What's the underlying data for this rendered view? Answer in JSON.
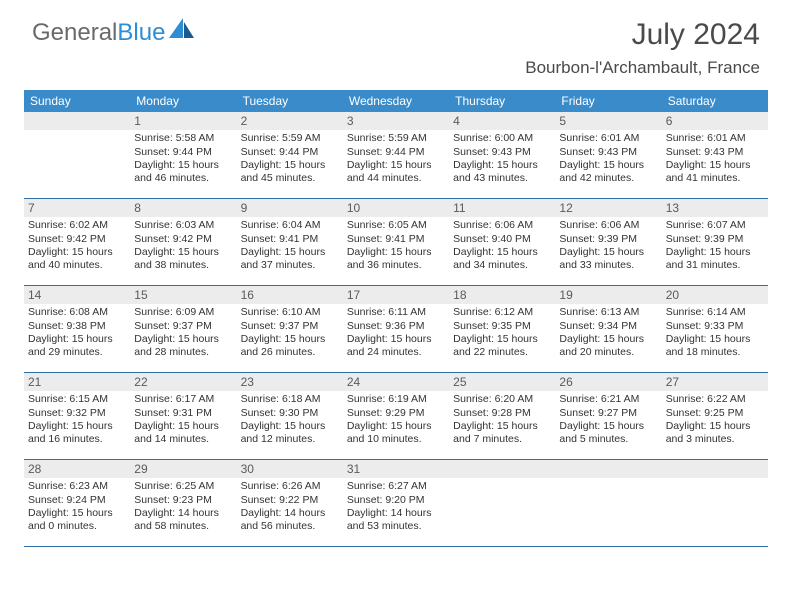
{
  "logo": {
    "text_a": "General",
    "text_b": "Blue"
  },
  "title": "July 2024",
  "location": "Bourbon-l'Archambault, France",
  "colors": {
    "header_bar": "#3a8bc9",
    "header_text": "#ffffff",
    "daynum_bg": "#ececec",
    "week_border": "#2f6fa8",
    "body_text": "#333333",
    "title_text": "#4a4a4a",
    "logo_gray": "#6a6a6a",
    "logo_blue": "#2f8dd4"
  },
  "dow": [
    "Sunday",
    "Monday",
    "Tuesday",
    "Wednesday",
    "Thursday",
    "Friday",
    "Saturday"
  ],
  "weeks": [
    [
      {
        "n": "",
        "sr": "",
        "ss": "",
        "dl": ""
      },
      {
        "n": "1",
        "sr": "Sunrise: 5:58 AM",
        "ss": "Sunset: 9:44 PM",
        "dl": "Daylight: 15 hours and 46 minutes."
      },
      {
        "n": "2",
        "sr": "Sunrise: 5:59 AM",
        "ss": "Sunset: 9:44 PM",
        "dl": "Daylight: 15 hours and 45 minutes."
      },
      {
        "n": "3",
        "sr": "Sunrise: 5:59 AM",
        "ss": "Sunset: 9:44 PM",
        "dl": "Daylight: 15 hours and 44 minutes."
      },
      {
        "n": "4",
        "sr": "Sunrise: 6:00 AM",
        "ss": "Sunset: 9:43 PM",
        "dl": "Daylight: 15 hours and 43 minutes."
      },
      {
        "n": "5",
        "sr": "Sunrise: 6:01 AM",
        "ss": "Sunset: 9:43 PM",
        "dl": "Daylight: 15 hours and 42 minutes."
      },
      {
        "n": "6",
        "sr": "Sunrise: 6:01 AM",
        "ss": "Sunset: 9:43 PM",
        "dl": "Daylight: 15 hours and 41 minutes."
      }
    ],
    [
      {
        "n": "7",
        "sr": "Sunrise: 6:02 AM",
        "ss": "Sunset: 9:42 PM",
        "dl": "Daylight: 15 hours and 40 minutes."
      },
      {
        "n": "8",
        "sr": "Sunrise: 6:03 AM",
        "ss": "Sunset: 9:42 PM",
        "dl": "Daylight: 15 hours and 38 minutes."
      },
      {
        "n": "9",
        "sr": "Sunrise: 6:04 AM",
        "ss": "Sunset: 9:41 PM",
        "dl": "Daylight: 15 hours and 37 minutes."
      },
      {
        "n": "10",
        "sr": "Sunrise: 6:05 AM",
        "ss": "Sunset: 9:41 PM",
        "dl": "Daylight: 15 hours and 36 minutes."
      },
      {
        "n": "11",
        "sr": "Sunrise: 6:06 AM",
        "ss": "Sunset: 9:40 PM",
        "dl": "Daylight: 15 hours and 34 minutes."
      },
      {
        "n": "12",
        "sr": "Sunrise: 6:06 AM",
        "ss": "Sunset: 9:39 PM",
        "dl": "Daylight: 15 hours and 33 minutes."
      },
      {
        "n": "13",
        "sr": "Sunrise: 6:07 AM",
        "ss": "Sunset: 9:39 PM",
        "dl": "Daylight: 15 hours and 31 minutes."
      }
    ],
    [
      {
        "n": "14",
        "sr": "Sunrise: 6:08 AM",
        "ss": "Sunset: 9:38 PM",
        "dl": "Daylight: 15 hours and 29 minutes."
      },
      {
        "n": "15",
        "sr": "Sunrise: 6:09 AM",
        "ss": "Sunset: 9:37 PM",
        "dl": "Daylight: 15 hours and 28 minutes."
      },
      {
        "n": "16",
        "sr": "Sunrise: 6:10 AM",
        "ss": "Sunset: 9:37 PM",
        "dl": "Daylight: 15 hours and 26 minutes."
      },
      {
        "n": "17",
        "sr": "Sunrise: 6:11 AM",
        "ss": "Sunset: 9:36 PM",
        "dl": "Daylight: 15 hours and 24 minutes."
      },
      {
        "n": "18",
        "sr": "Sunrise: 6:12 AM",
        "ss": "Sunset: 9:35 PM",
        "dl": "Daylight: 15 hours and 22 minutes."
      },
      {
        "n": "19",
        "sr": "Sunrise: 6:13 AM",
        "ss": "Sunset: 9:34 PM",
        "dl": "Daylight: 15 hours and 20 minutes."
      },
      {
        "n": "20",
        "sr": "Sunrise: 6:14 AM",
        "ss": "Sunset: 9:33 PM",
        "dl": "Daylight: 15 hours and 18 minutes."
      }
    ],
    [
      {
        "n": "21",
        "sr": "Sunrise: 6:15 AM",
        "ss": "Sunset: 9:32 PM",
        "dl": "Daylight: 15 hours and 16 minutes."
      },
      {
        "n": "22",
        "sr": "Sunrise: 6:17 AM",
        "ss": "Sunset: 9:31 PM",
        "dl": "Daylight: 15 hours and 14 minutes."
      },
      {
        "n": "23",
        "sr": "Sunrise: 6:18 AM",
        "ss": "Sunset: 9:30 PM",
        "dl": "Daylight: 15 hours and 12 minutes."
      },
      {
        "n": "24",
        "sr": "Sunrise: 6:19 AM",
        "ss": "Sunset: 9:29 PM",
        "dl": "Daylight: 15 hours and 10 minutes."
      },
      {
        "n": "25",
        "sr": "Sunrise: 6:20 AM",
        "ss": "Sunset: 9:28 PM",
        "dl": "Daylight: 15 hours and 7 minutes."
      },
      {
        "n": "26",
        "sr": "Sunrise: 6:21 AM",
        "ss": "Sunset: 9:27 PM",
        "dl": "Daylight: 15 hours and 5 minutes."
      },
      {
        "n": "27",
        "sr": "Sunrise: 6:22 AM",
        "ss": "Sunset: 9:25 PM",
        "dl": "Daylight: 15 hours and 3 minutes."
      }
    ],
    [
      {
        "n": "28",
        "sr": "Sunrise: 6:23 AM",
        "ss": "Sunset: 9:24 PM",
        "dl": "Daylight: 15 hours and 0 minutes."
      },
      {
        "n": "29",
        "sr": "Sunrise: 6:25 AM",
        "ss": "Sunset: 9:23 PM",
        "dl": "Daylight: 14 hours and 58 minutes."
      },
      {
        "n": "30",
        "sr": "Sunrise: 6:26 AM",
        "ss": "Sunset: 9:22 PM",
        "dl": "Daylight: 14 hours and 56 minutes."
      },
      {
        "n": "31",
        "sr": "Sunrise: 6:27 AM",
        "ss": "Sunset: 9:20 PM",
        "dl": "Daylight: 14 hours and 53 minutes."
      },
      {
        "n": "",
        "sr": "",
        "ss": "",
        "dl": ""
      },
      {
        "n": "",
        "sr": "",
        "ss": "",
        "dl": ""
      },
      {
        "n": "",
        "sr": "",
        "ss": "",
        "dl": ""
      }
    ]
  ]
}
